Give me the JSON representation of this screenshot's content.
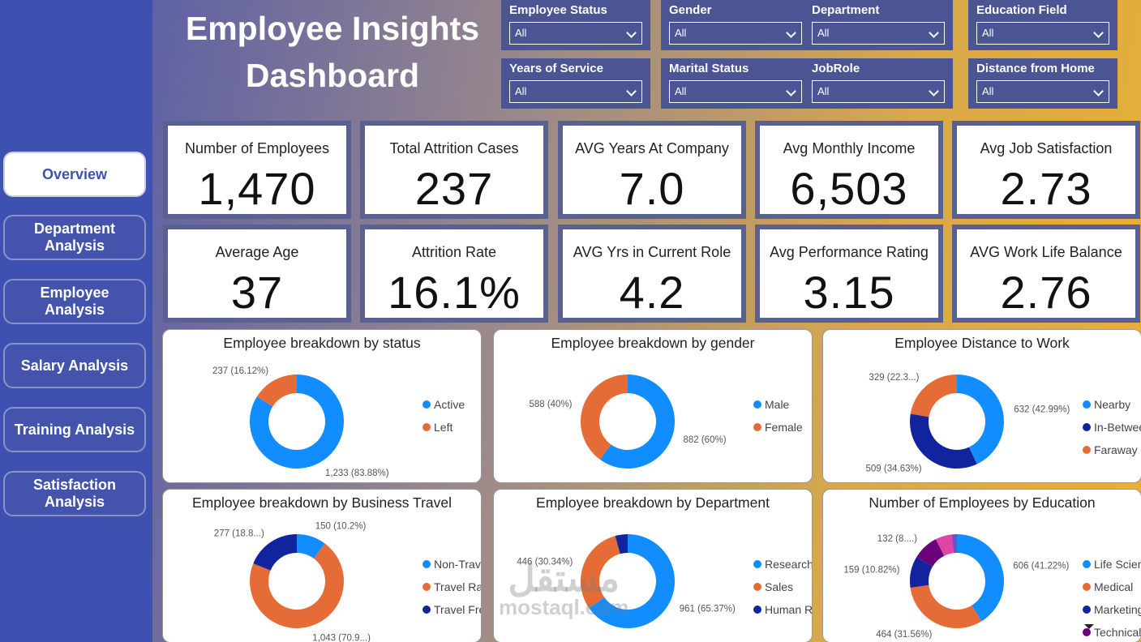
{
  "title": "Employee Insights Dashboard",
  "nav": [
    "Overview",
    "Department Analysis",
    "Employee Analysis",
    "Salary Analysis",
    "Training Analysis",
    "Satisfaction Analysis"
  ],
  "filters": [
    {
      "label": "Employee Status",
      "value": "All"
    },
    {
      "label": "Gender",
      "value": "All"
    },
    {
      "label": "Department",
      "value": "All"
    },
    {
      "label": "Education Field",
      "value": "All"
    },
    {
      "label": "Years of Service",
      "value": "All"
    },
    {
      "label": "Marital Status",
      "value": "All"
    },
    {
      "label": "JobRole",
      "value": "All"
    },
    {
      "label": "Distance from Home",
      "value": "All"
    }
  ],
  "kpis": [
    {
      "label": "Number of Employees",
      "value": "1,470"
    },
    {
      "label": "Total Attrition Cases",
      "value": "237"
    },
    {
      "label": "AVG Years At Company",
      "value": "7.0"
    },
    {
      "label": "Avg Monthly Income",
      "value": "6,503"
    },
    {
      "label": "Avg Job Satisfaction",
      "value": "2.73"
    },
    {
      "label": "Average Age",
      "value": "37"
    },
    {
      "label": "Attrition Rate",
      "value": "16.1%"
    },
    {
      "label": "AVG Yrs in Current Role",
      "value": "4.2"
    },
    {
      "label": "Avg Performance Rating",
      "value": "3.15"
    },
    {
      "label": "AVG Work Life Balance",
      "value": "2.76"
    }
  ],
  "watermark": [
    "مستقل",
    "mostaql.com"
  ],
  "chart_data": [
    {
      "type": "donut",
      "title": "Employee breakdown by status",
      "categories": [
        "Active",
        "Left"
      ],
      "values": [
        1233,
        237
      ],
      "value_labels": [
        "1,233 (83.88%)",
        "237 (16.12%)"
      ],
      "colors": [
        "#118dff",
        "#e66c37"
      ]
    },
    {
      "type": "donut",
      "title": "Employee breakdown by gender",
      "categories": [
        "Male",
        "Female"
      ],
      "values": [
        882,
        588
      ],
      "value_labels": [
        "882 (60%)",
        "588 (40%)"
      ],
      "colors": [
        "#118dff",
        "#e66c37"
      ]
    },
    {
      "type": "donut",
      "title": "Employee Distance to Work",
      "categories": [
        "Nearby",
        "In-Between",
        "Faraway"
      ],
      "values": [
        632,
        509,
        329
      ],
      "value_labels": [
        "632 (42.99%)",
        "509 (34.63%)",
        "329 (22.3...)"
      ],
      "colors": [
        "#118dff",
        "#12239e",
        "#e66c37"
      ]
    },
    {
      "type": "donut",
      "title": "Employee breakdown by Business Travel",
      "categories": [
        "Non-Travel",
        "Travel Rarely",
        "Travel Freq..."
      ],
      "values": [
        150,
        1043,
        277
      ],
      "value_labels": [
        "150 (10.2%)",
        "1,043 (70.9...)",
        "277 (18.8...)"
      ],
      "colors": [
        "#118dff",
        "#e66c37",
        "#12239e"
      ]
    },
    {
      "type": "donut",
      "title": "Employee breakdown by Department",
      "categories": [
        "Research &...",
        "Sales",
        "Human Res..."
      ],
      "values": [
        961,
        446,
        63
      ],
      "value_labels": [
        "961 (65.37%)",
        "446 (30.34%)",
        null
      ],
      "colors": [
        "#118dff",
        "#e66c37",
        "#12239e"
      ]
    },
    {
      "type": "donut",
      "title": "Number of Employees by Education",
      "categories": [
        "Life Sciences",
        "Medical",
        "Marketing",
        "Technical D...",
        null,
        null
      ],
      "values": [
        606,
        464,
        159,
        132,
        82,
        27
      ],
      "value_labels": [
        "606 (41.22%)",
        "464 (31.56%)",
        "159 (10.82%)",
        "132 (8....)",
        null,
        null
      ],
      "colors": [
        "#118dff",
        "#e66c37",
        "#12239e",
        "#6b007b",
        "#e044a7",
        "#744ec2"
      ]
    }
  ]
}
